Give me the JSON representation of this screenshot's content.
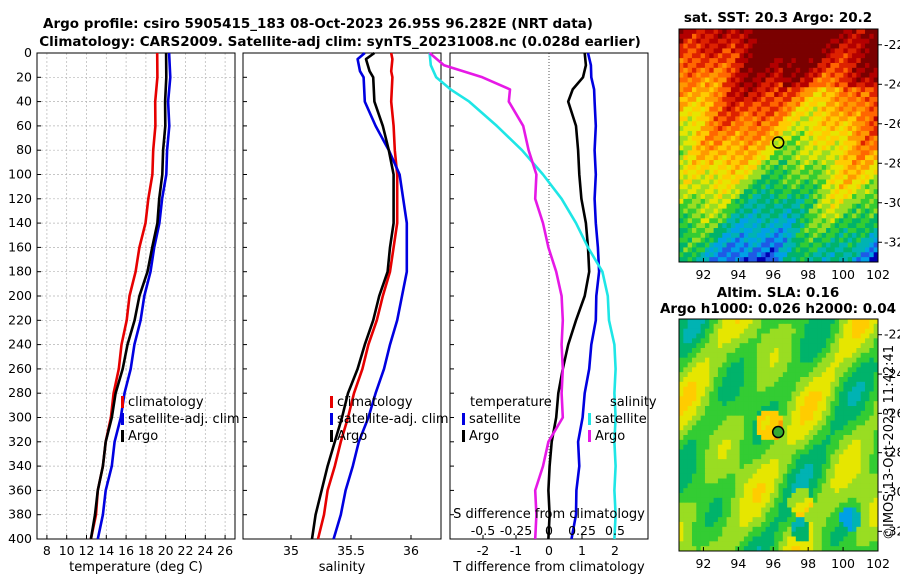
{
  "title": {
    "line1": "Argo profile: csiro 5905415_183 08-Oct-2023 26.95S 96.282E (NRT data)",
    "line2": "Climatology: CARS2009. Satellite-adj clim: synTS_20231008.nc (0.028d earlier)"
  },
  "stamp": "©IMOS 13-Oct-2023 11:42:41",
  "colors": {
    "climatology": "#e60000",
    "satellite": "#0000e0",
    "argo": "#000000",
    "salinity_sat": "#1ee6e6",
    "salinity_argo": "#e619e6"
  },
  "chart_data": [
    {
      "type": "line",
      "panel": "temperature",
      "xlabel": "temperature (deg C)",
      "xlim": [
        7,
        27
      ],
      "xticks": [
        8,
        10,
        12,
        14,
        16,
        18,
        20,
        22,
        24,
        26
      ],
      "ylim": [
        0,
        400
      ],
      "yticks": [
        0,
        20,
        40,
        60,
        80,
        100,
        120,
        140,
        160,
        180,
        200,
        220,
        240,
        260,
        280,
        300,
        320,
        340,
        360,
        380,
        400
      ],
      "legend": [
        "climatology",
        "satellite-adj. clim",
        "Argo"
      ],
      "depth": [
        0,
        20,
        40,
        60,
        80,
        100,
        120,
        140,
        160,
        180,
        200,
        220,
        240,
        260,
        280,
        300,
        320,
        340,
        360,
        380,
        400
      ],
      "series": [
        {
          "name": "climatology",
          "values": [
            19.2,
            19.1,
            19.0,
            18.9,
            18.8,
            18.6,
            18.3,
            17.9,
            17.4,
            16.9,
            16.4,
            16.0,
            15.6,
            15.2,
            14.8,
            14.4,
            14.0,
            13.6,
            13.2,
            12.9,
            12.5
          ]
        },
        {
          "name": "satellite-adj. clim",
          "values": [
            20.4,
            20.4,
            20.3,
            20.3,
            20.2,
            20.0,
            19.7,
            19.3,
            18.9,
            18.4,
            17.9,
            17.4,
            16.9,
            16.4,
            15.9,
            15.4,
            14.9,
            14.5,
            14.0,
            13.6,
            13.2
          ]
        },
        {
          "name": "Argo",
          "values": [
            20.1,
            20.0,
            20.0,
            19.9,
            19.8,
            19.6,
            19.4,
            19.1,
            18.7,
            18.1,
            17.4,
            16.8,
            16.2,
            15.6,
            15.0,
            14.5,
            14.0,
            13.6,
            13.2,
            12.8,
            12.5
          ]
        }
      ]
    },
    {
      "type": "line",
      "panel": "salinity",
      "xlabel": "salinity",
      "xlim": [
        34.6,
        36.25
      ],
      "xticks": [
        35,
        35.5,
        36
      ],
      "xtick_labels": [
        "35",
        "35.5",
        "36"
      ],
      "ylim": [
        0,
        400
      ],
      "legend": [
        "climatology",
        "satellite-adj. clim",
        "Argo"
      ],
      "depth": [
        0,
        5,
        15,
        20,
        40,
        60,
        80,
        100,
        120,
        140,
        160,
        180,
        200,
        220,
        240,
        260,
        280,
        300,
        320,
        340,
        360,
        380,
        400
      ],
      "series": [
        {
          "name": "climatology",
          "values": [
            35.84,
            35.84,
            35.84,
            35.84,
            35.84,
            35.85,
            35.87,
            35.88,
            35.89,
            35.88,
            35.86,
            35.82,
            35.77,
            35.71,
            35.65,
            35.59,
            35.53,
            35.47,
            35.42,
            35.36,
            35.31,
            35.27,
            35.23
          ]
        },
        {
          "name": "satellite-adj. clim",
          "values": [
            35.62,
            35.55,
            35.58,
            35.6,
            35.62,
            35.7,
            35.82,
            35.9,
            35.94,
            35.96,
            35.97,
            35.96,
            35.93,
            35.88,
            35.83,
            35.77,
            35.71,
            35.64,
            35.57,
            35.51,
            35.46,
            35.41,
            35.36
          ]
        },
        {
          "name": "Argo",
          "values": [
            35.7,
            35.62,
            35.66,
            35.68,
            35.7,
            35.76,
            35.82,
            35.85,
            35.86,
            35.85,
            35.83,
            35.8,
            35.74,
            35.68,
            35.62,
            35.55,
            35.48,
            35.42,
            35.37,
            35.3,
            35.26,
            35.2,
            35.18
          ]
        }
      ]
    },
    {
      "type": "line",
      "panel": "difference",
      "xlabel": "T difference from climatology",
      "xlim": [
        -3,
        3
      ],
      "xticks": [
        -2,
        -1,
        0,
        1,
        2
      ],
      "s_axis_label": "S difference from climatology",
      "s_ticks": [
        "-0.5",
        "-0.25",
        "0",
        "0.25",
        "0.5"
      ],
      "ylim": [
        0,
        400
      ],
      "legend_temperature": {
        "title": "temperature",
        "items": [
          "satellite",
          "Argo"
        ]
      },
      "legend_salinity": {
        "title": "salinity",
        "items": [
          "satellite",
          "Argo"
        ]
      },
      "depth": [
        0,
        10,
        20,
        30,
        40,
        60,
        80,
        100,
        120,
        140,
        160,
        180,
        200,
        220,
        240,
        260,
        280,
        300,
        320,
        340,
        360,
        380,
        400
      ],
      "series": [
        {
          "name": "temperature satellite",
          "values": [
            1.2,
            1.25,
            1.3,
            1.35,
            1.4,
            1.4,
            1.4,
            1.4,
            1.4,
            1.4,
            1.5,
            1.5,
            1.45,
            1.4,
            1.3,
            1.2,
            1.1,
            1.0,
            0.9,
            0.9,
            0.85,
            0.8,
            0.7
          ]
        },
        {
          "name": "temperature Argo",
          "values": [
            1.1,
            1.1,
            1.05,
            0.7,
            0.6,
            0.8,
            0.9,
            0.9,
            1.0,
            1.1,
            1.2,
            1.2,
            1.1,
            0.8,
            0.6,
            0.4,
            0.3,
            0.2,
            0.1,
            0.0,
            0.0,
            0.0,
            0.0
          ]
        },
        {
          "name": "salinity satellite",
          "values": [
            -0.9,
            -0.9,
            -0.85,
            -0.75,
            -0.6,
            -0.4,
            -0.2,
            -0.05,
            0.1,
            0.2,
            0.3,
            0.4,
            0.45,
            0.45,
            0.5,
            0.5,
            0.5,
            0.5,
            0.5,
            0.5,
            0.5,
            0.5,
            0.5
          ]
        },
        {
          "name": "salinity Argo",
          "values": [
            -0.9,
            -0.8,
            -0.5,
            -0.3,
            -0.3,
            -0.2,
            -0.15,
            -0.1,
            -0.1,
            -0.05,
            0.0,
            0.05,
            0.1,
            0.1,
            0.1,
            0.1,
            0.1,
            0.1,
            0.0,
            -0.05,
            -0.1,
            -0.1,
            -0.1
          ]
        }
      ]
    },
    {
      "type": "heatmap",
      "panel": "sst",
      "title": "sat. SST: 20.3 Argo: 20.2",
      "xlim": [
        90.6,
        102
      ],
      "ylim": [
        -33,
        -21.2
      ],
      "xticks": [
        92,
        94,
        96,
        98,
        100,
        102
      ],
      "yticks": [
        -22,
        -24,
        -26,
        -28,
        -30,
        -32
      ],
      "marker": {
        "lon": 96.282,
        "lat": -26.95
      }
    },
    {
      "type": "heatmap",
      "panel": "sla",
      "title": "Altim. SLA: 0.16",
      "subtitle": "Argo h1000: 0.026 h2000: 0.04",
      "xlim": [
        90.6,
        102
      ],
      "ylim": [
        -33,
        -21.2
      ],
      "xticks": [
        92,
        94,
        96,
        98,
        100,
        102
      ],
      "yticks": [
        -22,
        -24,
        -26,
        -28,
        -30,
        -32
      ],
      "marker": {
        "lon": 96.282,
        "lat": -26.95
      }
    }
  ]
}
